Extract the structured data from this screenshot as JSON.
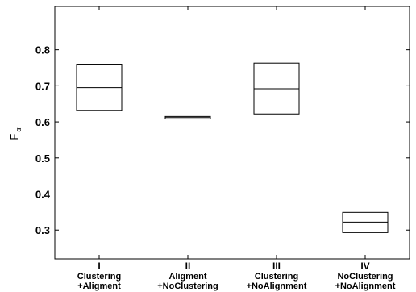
{
  "chart_data": {
    "type": "box",
    "title": "",
    "ylabel": "F",
    "ylabel_subscript": "α",
    "xlabel": "",
    "ylim": [
      0.22,
      0.92
    ],
    "yticks": [
      0.3,
      0.4,
      0.5,
      0.6,
      0.7,
      0.8
    ],
    "ytick_labels": [
      "0.3",
      "0.4",
      "0.5",
      "0.6",
      "0.7",
      "0.8"
    ],
    "grid": false,
    "categories": [
      {
        "numeral": "I",
        "line1": "Clustering",
        "line2": "+Aligment"
      },
      {
        "numeral": "II",
        "line1": "Aligment",
        "line2": "+NoClustering"
      },
      {
        "numeral": "III",
        "line1": "Clustering",
        "line2": "+NoAlignment"
      },
      {
        "numeral": "IV",
        "line1": "NoClustering",
        "line2": "+NoAlignment"
      }
    ],
    "boxes": [
      {
        "low": 0.632,
        "median": 0.695,
        "high": 0.76
      },
      {
        "low": 0.608,
        "median": 0.612,
        "high": 0.615
      },
      {
        "low": 0.622,
        "median": 0.692,
        "high": 0.763
      },
      {
        "low": 0.293,
        "median": 0.322,
        "high": 0.349
      }
    ]
  }
}
